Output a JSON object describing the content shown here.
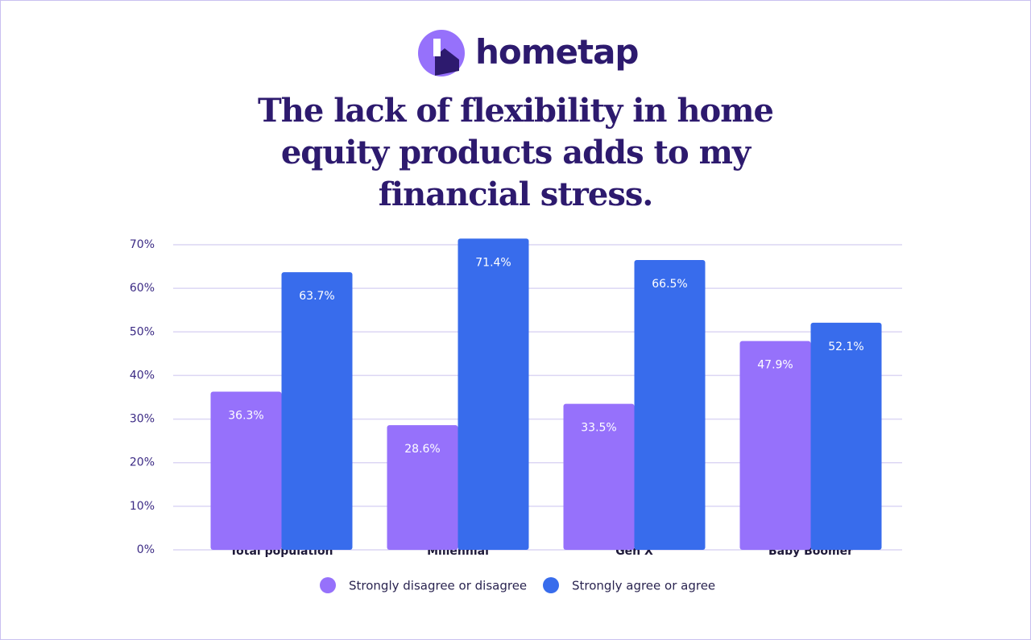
{
  "chart_data": {
    "type": "bar",
    "logo_text": "hometap",
    "title": "The lack of flexibility in home equity products adds to my financial stress.",
    "categories": [
      "Total population",
      "Millennial",
      "Gen X",
      "Baby Boomer"
    ],
    "series": [
      {
        "name": "Strongly disagree or disagree",
        "color": "#9671fb",
        "values": [
          36.3,
          28.6,
          33.5,
          47.9
        ],
        "value_labels": [
          "36.3%",
          "28.6%",
          "33.5%",
          "47.9%"
        ]
      },
      {
        "name": "Strongly agree or agree",
        "color": "#386cec",
        "values": [
          63.7,
          71.4,
          66.5,
          52.1
        ],
        "value_labels": [
          "63.7%",
          "71.4%",
          "66.5%",
          "52.1%"
        ]
      }
    ],
    "ylim": [
      0,
      70
    ],
    "yticks": [
      {
        "value": 0,
        "label": "0%"
      },
      {
        "value": 10,
        "label": "10%"
      },
      {
        "value": 20,
        "label": "20%"
      },
      {
        "value": 30,
        "label": "30%"
      },
      {
        "value": 40,
        "label": "40%"
      },
      {
        "value": 50,
        "label": "50%"
      },
      {
        "value": 60,
        "label": "60%"
      },
      {
        "value": 70,
        "label": "70%"
      }
    ],
    "grid": true,
    "legend": "bottom"
  }
}
